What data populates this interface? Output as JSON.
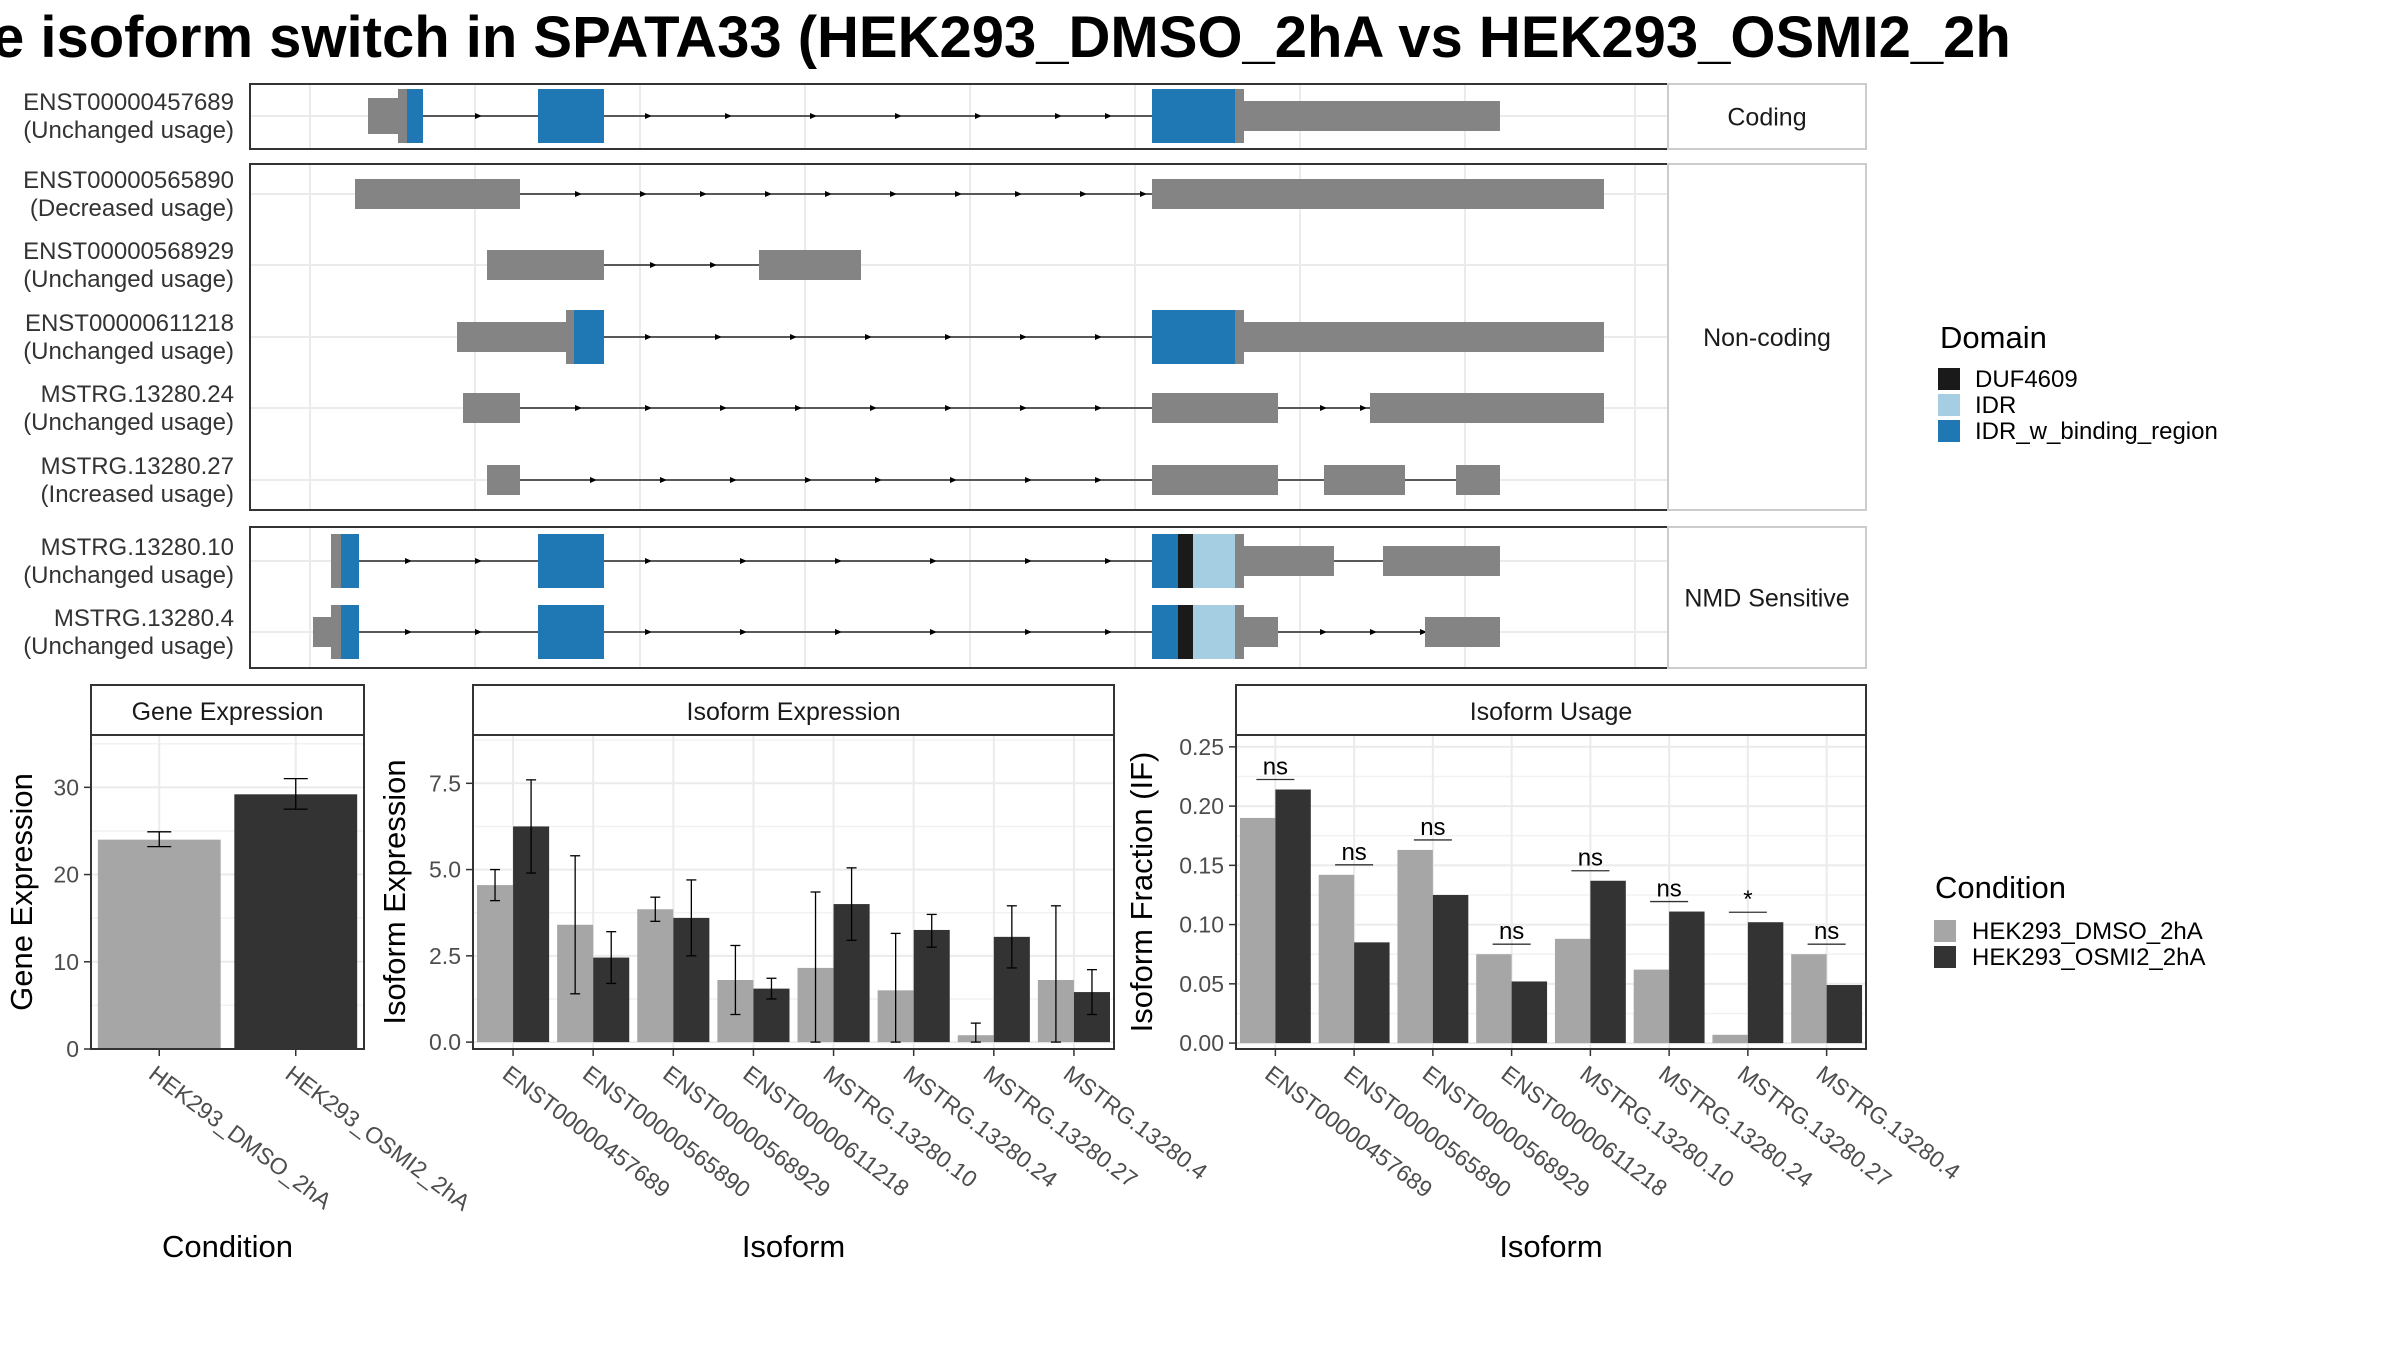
{
  "title": "e isoform switch in SPATA33 (HEK293_DMSO_2hA vs HEK293_OSMI2_2h",
  "transcripts": {
    "groups": [
      {
        "label": "Coding",
        "rows": [
          {
            "id": "ENST00000457689",
            "usage": "(Unchanged usage)"
          }
        ]
      },
      {
        "label": "Non-coding",
        "rows": [
          {
            "id": "ENST00000565890",
            "usage": "(Decreased usage)"
          },
          {
            "id": "ENST00000568929",
            "usage": "(Unchanged usage)"
          },
          {
            "id": "ENST00000611218",
            "usage": "(Unchanged usage)"
          },
          {
            "id": "MSTRG.13280.24",
            "usage": "(Unchanged usage)"
          },
          {
            "id": "MSTRG.13280.27",
            "usage": "(Increased usage)"
          }
        ]
      },
      {
        "label": "NMD Sensitive",
        "rows": [
          {
            "id": "MSTRG.13280.10",
            "usage": "(Unchanged usage)"
          },
          {
            "id": "MSTRG.13280.4",
            "usage": "(Unchanged usage)"
          }
        ]
      }
    ]
  },
  "legends": {
    "domain": {
      "title": "Domain",
      "items": [
        {
          "label": "DUF4609",
          "color": "#1a1a1a"
        },
        {
          "label": "IDR",
          "color": "#a6cee3"
        },
        {
          "label": "IDR_w_binding_region",
          "color": "#1f78b4"
        }
      ]
    },
    "condition": {
      "title": "Condition",
      "items": [
        {
          "label": "HEK293_DMSO_2hA",
          "color": "#a6a6a6"
        },
        {
          "label": "HEK293_OSMI2_2hA",
          "color": "#333333"
        }
      ]
    }
  },
  "chart_data": [
    {
      "type": "bar",
      "title": "Gene Expression",
      "xlabel": "Condition",
      "ylabel": "Gene Expression",
      "ylim": [
        0,
        36
      ],
      "yticks": [
        0,
        10,
        20,
        30
      ],
      "categories": [
        "HEK293_DMSO_2hA",
        "HEK293_OSMI2_2hA"
      ],
      "values": [
        24,
        29.2
      ],
      "err_low": [
        23.2,
        27.5
      ],
      "err_high": [
        24.9,
        31.0
      ],
      "grid": true
    },
    {
      "type": "bar",
      "title": "Isoform Expression",
      "xlabel": "Isoform",
      "ylabel": "Isoform Expression",
      "ylim": [
        -0.2,
        8.9
      ],
      "yticks": [
        0.0,
        2.5,
        5.0,
        7.5
      ],
      "ytick_labels": [
        "0.0",
        "2.5",
        "5.0",
        "7.5"
      ],
      "categories": [
        "ENST00000457689",
        "ENST00000565890",
        "ENST00000568929",
        "ENST00000611218",
        "MSTRG.13280.10",
        "MSTRG.13280.24",
        "MSTRG.13280.27",
        "MSTRG.13280.4"
      ],
      "series": [
        {
          "name": "HEK293_DMSO_2hA",
          "values": [
            4.55,
            3.4,
            3.85,
            1.8,
            2.15,
            1.5,
            0.2,
            1.8
          ],
          "err_low": [
            4.1,
            1.4,
            3.5,
            0.8,
            0.0,
            0.0,
            0.0,
            0.0
          ],
          "err_high": [
            5.0,
            5.4,
            4.2,
            2.8,
            4.35,
            3.15,
            0.55,
            3.95
          ]
        },
        {
          "name": "HEK293_OSMI2_2hA",
          "values": [
            6.25,
            2.45,
            3.6,
            1.55,
            4.0,
            3.25,
            3.05,
            1.45
          ],
          "err_low": [
            4.9,
            1.7,
            2.5,
            1.25,
            2.95,
            2.75,
            2.15,
            0.8
          ],
          "err_high": [
            7.6,
            3.2,
            4.7,
            1.85,
            5.05,
            3.7,
            3.95,
            2.1
          ]
        }
      ],
      "grid": true
    },
    {
      "type": "bar",
      "title": "Isoform Usage",
      "xlabel": "Isoform",
      "ylabel": "Isoform Fraction (IF)",
      "ylim": [
        -0.005,
        0.26
      ],
      "yticks": [
        0.0,
        0.05,
        0.1,
        0.15,
        0.2,
        0.25
      ],
      "ytick_labels": [
        "0.00",
        "0.05",
        "0.10",
        "0.15",
        "0.20",
        "0.25"
      ],
      "categories": [
        "ENST00000457689",
        "ENST00000565890",
        "ENST00000568929",
        "ENST00000611218",
        "MSTRG.13280.10",
        "MSTRG.13280.24",
        "MSTRG.13280.27",
        "MSTRG.13280.4"
      ],
      "series": [
        {
          "name": "HEK293_DMSO_2hA",
          "values": [
            0.19,
            0.142,
            0.163,
            0.075,
            0.088,
            0.062,
            0.007,
            0.075
          ]
        },
        {
          "name": "HEK293_OSMI2_2hA",
          "values": [
            0.214,
            0.085,
            0.125,
            0.052,
            0.137,
            0.111,
            0.102,
            0.049
          ]
        }
      ],
      "annotations": [
        "ns",
        "ns",
        "ns",
        "ns",
        "ns",
        "ns",
        "*",
        "ns"
      ],
      "grid": true
    }
  ]
}
